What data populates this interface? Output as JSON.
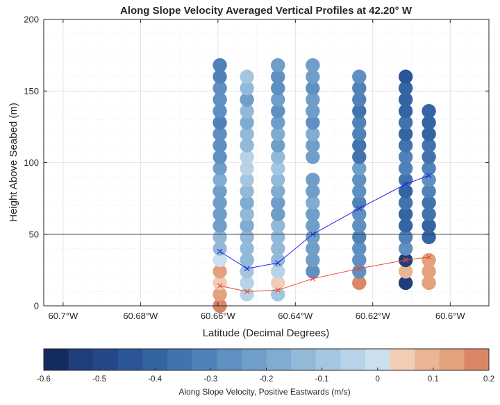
{
  "chart_data": {
    "type": "scatter",
    "title": "Along Slope Velocity Averaged Vertical Profiles at 42.20° W",
    "xlabel": "Latitude (Decimal Degrees)",
    "ylabel": "Height Above Seabed (m)",
    "xlim": [
      -60.705,
      -60.59
    ],
    "ylim": [
      0,
      200
    ],
    "x_direction": "reversed",
    "x_ticks": [
      {
        "value": -60.7,
        "label": "60.7°W"
      },
      {
        "value": -60.68,
        "label": "60.68°W"
      },
      {
        "value": -60.66,
        "label": "60.66°W"
      },
      {
        "value": -60.64,
        "label": "60.64°W"
      },
      {
        "value": -60.62,
        "label": "60.62°W"
      },
      {
        "value": -60.6,
        "label": "60.6°W"
      }
    ],
    "y_ticks": [
      {
        "value": 0,
        "label": "0"
      },
      {
        "value": 50,
        "label": "50"
      },
      {
        "value": 100,
        "label": "100"
      },
      {
        "value": 150,
        "label": "150"
      },
      {
        "value": 200,
        "label": "200"
      }
    ],
    "grid": true,
    "reference_line_y": 50,
    "profiles": [
      {
        "x": -60.6595,
        "z": [
          0,
          8,
          16,
          24,
          32,
          40,
          48,
          56,
          64,
          72,
          80,
          88,
          96,
          104,
          112,
          120,
          128,
          136,
          144,
          152,
          160,
          168
        ],
        "v": [
          0.2,
          0.15,
          0.05,
          0.15,
          -0.02,
          -0.12,
          -0.15,
          -0.2,
          -0.2,
          -0.2,
          -0.2,
          -0.18,
          -0.22,
          -0.25,
          -0.28,
          -0.25,
          -0.3,
          -0.25,
          -0.28,
          -0.25,
          -0.3,
          -0.3
        ]
      },
      {
        "x": -60.6525,
        "z": [
          8,
          16,
          24,
          32,
          40,
          48,
          56,
          64,
          72,
          80,
          88,
          96,
          104,
          112,
          120,
          128,
          136,
          144,
          152,
          160
        ],
        "v": [
          -0.05,
          -0.05,
          -0.1,
          -0.15,
          -0.15,
          -0.15,
          -0.18,
          -0.15,
          -0.18,
          -0.12,
          -0.1,
          -0.05,
          -0.05,
          -0.15,
          -0.12,
          -0.18,
          -0.15,
          -0.2,
          -0.15,
          -0.1
        ]
      },
      {
        "x": -60.6445,
        "z": [
          8,
          16,
          24,
          32,
          40,
          48,
          56,
          64,
          72,
          80,
          88,
          96,
          104,
          112,
          120,
          128,
          136,
          144,
          152,
          160,
          168
        ],
        "v": [
          -0.1,
          0.05,
          -0.05,
          -0.12,
          -0.12,
          -0.15,
          -0.15,
          -0.2,
          -0.2,
          -0.18,
          -0.15,
          -0.1,
          -0.12,
          -0.2,
          -0.18,
          -0.22,
          -0.25,
          -0.22,
          -0.28,
          -0.25,
          -0.2
        ]
      },
      {
        "x": -60.6355,
        "z": [
          24,
          32,
          40,
          48,
          56,
          64,
          72,
          80,
          88,
          104,
          112,
          120,
          128,
          136,
          144,
          152,
          160,
          168
        ],
        "v": [
          -0.25,
          -0.22,
          -0.2,
          -0.22,
          -0.2,
          -0.2,
          -0.18,
          -0.22,
          -0.2,
          -0.2,
          -0.22,
          -0.18,
          -0.25,
          -0.22,
          -0.2,
          -0.25,
          -0.22,
          -0.2
        ]
      },
      {
        "x": -60.6235,
        "z": [
          16,
          24,
          32,
          40,
          48,
          56,
          64,
          72,
          80,
          88,
          96,
          104,
          112,
          120,
          128,
          136,
          144,
          152,
          160
        ],
        "v": [
          0.18,
          -0.25,
          -0.28,
          -0.25,
          -0.3,
          -0.25,
          -0.25,
          -0.3,
          -0.28,
          -0.25,
          -0.22,
          -0.35,
          -0.35,
          -0.32,
          -0.3,
          -0.35,
          -0.32,
          -0.3,
          -0.28
        ]
      },
      {
        "x": -60.6115,
        "z": [
          16,
          24,
          32,
          40,
          48,
          56,
          64,
          72,
          80,
          88,
          96,
          104,
          112,
          120,
          128,
          136,
          144,
          152,
          160
        ],
        "v": [
          -0.55,
          0.08,
          -0.55,
          -0.25,
          -0.32,
          -0.4,
          -0.38,
          -0.35,
          -0.38,
          -0.35,
          -0.32,
          -0.32,
          -0.35,
          -0.38,
          -0.35,
          -0.38,
          -0.4,
          -0.42,
          -0.45
        ]
      },
      {
        "x": -60.6055,
        "z": [
          16,
          24,
          32,
          48,
          56,
          64,
          72,
          80,
          88,
          96,
          104,
          112,
          120,
          128,
          136
        ],
        "v": [
          0.15,
          0.15,
          0.15,
          -0.4,
          -0.4,
          -0.35,
          -0.35,
          -0.32,
          -0.28,
          -0.3,
          -0.35,
          -0.35,
          -0.38,
          -0.4,
          -0.42
        ]
      }
    ],
    "series": [
      {
        "color": "#2222ee",
        "marker": "x",
        "x": [
          -60.6595,
          -60.6525,
          -60.6445,
          -60.6355,
          -60.6235,
          -60.6115,
          -60.6055
        ],
        "y": [
          38,
          26,
          30,
          50,
          68,
          85,
          91
        ]
      },
      {
        "color": "#ee4433",
        "marker": "x",
        "x": [
          -60.6595,
          -60.6525,
          -60.6445,
          -60.6355,
          -60.6235,
          -60.6115,
          -60.6055
        ],
        "y": [
          14,
          10,
          11,
          19,
          26,
          32,
          34
        ]
      }
    ],
    "colorbar": {
      "label": "Along Slope Velocity, Positive Eastwards (m/s)",
      "range": [
        -0.6,
        0.2
      ],
      "ticks": [
        {
          "value": -0.6,
          "label": "-0.6"
        },
        {
          "value": -0.5,
          "label": "-0.5"
        },
        {
          "value": -0.4,
          "label": "-0.4"
        },
        {
          "value": -0.3,
          "label": "-0.3"
        },
        {
          "value": -0.2,
          "label": "-0.2"
        },
        {
          "value": -0.1,
          "label": "-0.1"
        },
        {
          "value": 0,
          "label": "0"
        },
        {
          "value": 0.1,
          "label": "0.1"
        },
        {
          "value": 0.2,
          "label": "0.2"
        }
      ],
      "colors": [
        "#132b5f",
        "#1e3f7a",
        "#24488a",
        "#2b5597",
        "#3564a3",
        "#4273ae",
        "#4f82b8",
        "#5f90c1",
        "#6f9ec9",
        "#81acd1",
        "#93b9d9",
        "#a5c6e0",
        "#b8d3e7",
        "#cbdfec",
        "#f2cdb5",
        "#eab595",
        "#e4a17d",
        "#da8767"
      ]
    }
  }
}
